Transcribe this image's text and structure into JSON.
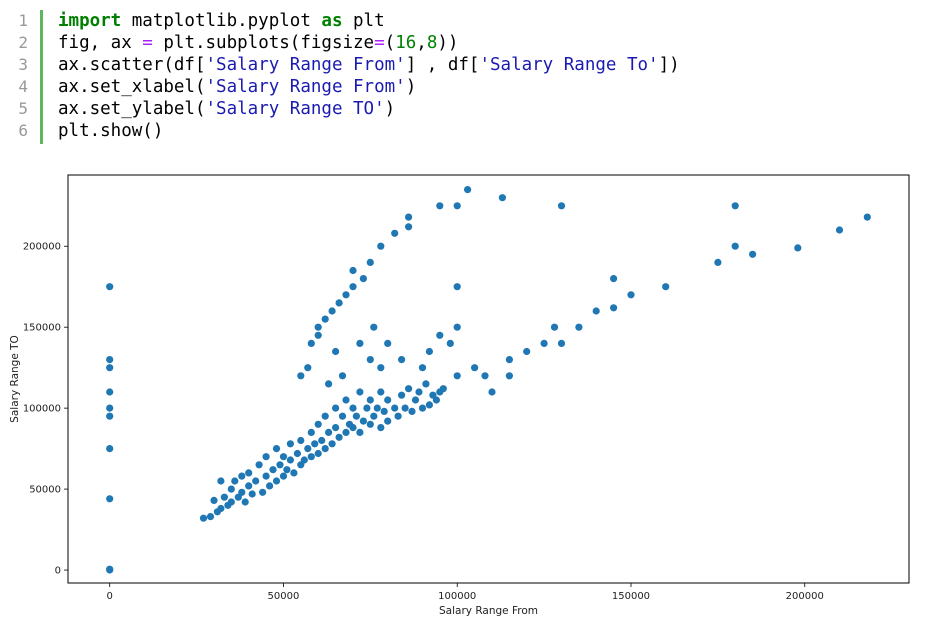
{
  "code": {
    "line_numbers": [
      "1",
      "2",
      "3",
      "4",
      "5",
      "6"
    ],
    "lines": [
      [
        {
          "t": "import",
          "c": "kw"
        },
        {
          "t": " matplotlib.pyplot ",
          "c": ""
        },
        {
          "t": "as",
          "c": "kw"
        },
        {
          "t": " plt",
          "c": ""
        }
      ],
      [
        {
          "t": "fig, ax ",
          "c": ""
        },
        {
          "t": "=",
          "c": "op"
        },
        {
          "t": " plt.subplots(figsize",
          "c": ""
        },
        {
          "t": "=",
          "c": "op"
        },
        {
          "t": "(",
          "c": ""
        },
        {
          "t": "16",
          "c": "num"
        },
        {
          "t": ",",
          "c": ""
        },
        {
          "t": "8",
          "c": "num"
        },
        {
          "t": "))",
          "c": ""
        }
      ],
      [
        {
          "t": "ax.scatter(df[",
          "c": ""
        },
        {
          "t": "'Salary Range From'",
          "c": "str"
        },
        {
          "t": "] , df[",
          "c": ""
        },
        {
          "t": "'Salary Range To'",
          "c": "str"
        },
        {
          "t": "])",
          "c": ""
        }
      ],
      [
        {
          "t": "ax.set_xlabel(",
          "c": ""
        },
        {
          "t": "'Salary Range From'",
          "c": "str"
        },
        {
          "t": ")",
          "c": ""
        }
      ],
      [
        {
          "t": "ax.set_ylabel(",
          "c": ""
        },
        {
          "t": "'Salary Range TO'",
          "c": "str"
        },
        {
          "t": ")",
          "c": ""
        }
      ],
      [
        {
          "t": "plt.show()",
          "c": ""
        }
      ]
    ]
  },
  "colors": {
    "marker": "#1f77b4",
    "keyword": "#008000",
    "string": "#1a1ab2",
    "number": "#008000",
    "operator": "#aa22ff",
    "gutter_bar": "#5cb85c"
  },
  "chart_data": {
    "type": "scatter",
    "title": "",
    "xlabel": "Salary Range From",
    "ylabel": "Salary Range TO",
    "xlim": [
      -12000,
      230000
    ],
    "ylim": [
      -8000,
      244000
    ],
    "xticks": [
      0,
      50000,
      100000,
      150000,
      200000
    ],
    "xtick_labels": [
      "0",
      "50000",
      "100000",
      "150000",
      "200000"
    ],
    "yticks": [
      0,
      50000,
      100000,
      150000,
      200000
    ],
    "ytick_labels": [
      "0",
      "50000",
      "100000",
      "150000",
      "200000"
    ],
    "grid": false,
    "series": [
      {
        "points": [
          [
            0,
            0
          ],
          [
            0,
            500
          ],
          [
            0,
            44000
          ],
          [
            0,
            75000
          ],
          [
            0,
            95000
          ],
          [
            0,
            100000
          ],
          [
            0,
            110000
          ],
          [
            0,
            125000
          ],
          [
            0,
            130000
          ],
          [
            0,
            175000
          ],
          [
            27000,
            32000
          ],
          [
            29000,
            33000
          ],
          [
            30000,
            43000
          ],
          [
            31000,
            36000
          ],
          [
            32000,
            38000
          ],
          [
            32000,
            55000
          ],
          [
            33000,
            45000
          ],
          [
            34000,
            40000
          ],
          [
            35000,
            50000
          ],
          [
            35000,
            42000
          ],
          [
            36000,
            55000
          ],
          [
            37000,
            45000
          ],
          [
            38000,
            48000
          ],
          [
            38000,
            58000
          ],
          [
            39000,
            42000
          ],
          [
            40000,
            52000
          ],
          [
            40000,
            60000
          ],
          [
            41000,
            47000
          ],
          [
            42000,
            55000
          ],
          [
            43000,
            65000
          ],
          [
            44000,
            48000
          ],
          [
            45000,
            58000
          ],
          [
            45000,
            70000
          ],
          [
            46000,
            52000
          ],
          [
            47000,
            62000
          ],
          [
            48000,
            55000
          ],
          [
            48000,
            75000
          ],
          [
            49000,
            65000
          ],
          [
            50000,
            58000
          ],
          [
            50000,
            70000
          ],
          [
            51000,
            62000
          ],
          [
            52000,
            68000
          ],
          [
            52000,
            78000
          ],
          [
            53000,
            60000
          ],
          [
            54000,
            72000
          ],
          [
            55000,
            65000
          ],
          [
            55000,
            80000
          ],
          [
            56000,
            68000
          ],
          [
            57000,
            75000
          ],
          [
            58000,
            70000
          ],
          [
            58000,
            85000
          ],
          [
            59000,
            78000
          ],
          [
            60000,
            72000
          ],
          [
            60000,
            90000
          ],
          [
            61000,
            80000
          ],
          [
            62000,
            75000
          ],
          [
            62000,
            95000
          ],
          [
            63000,
            85000
          ],
          [
            64000,
            78000
          ],
          [
            65000,
            88000
          ],
          [
            65000,
            100000
          ],
          [
            66000,
            82000
          ],
          [
            67000,
            95000
          ],
          [
            68000,
            85000
          ],
          [
            68000,
            105000
          ],
          [
            69000,
            90000
          ],
          [
            70000,
            88000
          ],
          [
            70000,
            100000
          ],
          [
            71000,
            95000
          ],
          [
            72000,
            85000
          ],
          [
            72000,
            110000
          ],
          [
            73000,
            92000
          ],
          [
            74000,
            100000
          ],
          [
            75000,
            90000
          ],
          [
            75000,
            105000
          ],
          [
            76000,
            95000
          ],
          [
            77000,
            100000
          ],
          [
            78000,
            88000
          ],
          [
            78000,
            110000
          ],
          [
            79000,
            98000
          ],
          [
            80000,
            92000
          ],
          [
            80000,
            105000
          ],
          [
            82000,
            100000
          ],
          [
            83000,
            95000
          ],
          [
            84000,
            108000
          ],
          [
            85000,
            100000
          ],
          [
            86000,
            112000
          ],
          [
            87000,
            98000
          ],
          [
            88000,
            105000
          ],
          [
            89000,
            110000
          ],
          [
            90000,
            100000
          ],
          [
            91000,
            115000
          ],
          [
            92000,
            102000
          ],
          [
            93000,
            108000
          ],
          [
            94000,
            105000
          ],
          [
            95000,
            110000
          ],
          [
            96000,
            112000
          ],
          [
            55000,
            120000
          ],
          [
            57000,
            125000
          ],
          [
            58000,
            140000
          ],
          [
            60000,
            145000
          ],
          [
            60000,
            150000
          ],
          [
            62000,
            155000
          ],
          [
            63000,
            115000
          ],
          [
            64000,
            160000
          ],
          [
            65000,
            135000
          ],
          [
            66000,
            165000
          ],
          [
            67000,
            120000
          ],
          [
            68000,
            170000
          ],
          [
            70000,
            175000
          ],
          [
            70000,
            185000
          ],
          [
            72000,
            140000
          ],
          [
            73000,
            180000
          ],
          [
            75000,
            190000
          ],
          [
            75000,
            130000
          ],
          [
            76000,
            150000
          ],
          [
            78000,
            200000
          ],
          [
            78000,
            125000
          ],
          [
            80000,
            140000
          ],
          [
            82000,
            208000
          ],
          [
            84000,
            130000
          ],
          [
            86000,
            218000
          ],
          [
            86000,
            212000
          ],
          [
            90000,
            125000
          ],
          [
            92000,
            135000
          ],
          [
            95000,
            225000
          ],
          [
            95000,
            145000
          ],
          [
            98000,
            140000
          ],
          [
            100000,
            225000
          ],
          [
            100000,
            175000
          ],
          [
            100000,
            150000
          ],
          [
            100000,
            120000
          ],
          [
            103000,
            235000
          ],
          [
            105000,
            125000
          ],
          [
            108000,
            120000
          ],
          [
            110000,
            110000
          ],
          [
            113000,
            230000
          ],
          [
            115000,
            130000
          ],
          [
            115000,
            120000
          ],
          [
            120000,
            135000
          ],
          [
            125000,
            140000
          ],
          [
            128000,
            150000
          ],
          [
            130000,
            225000
          ],
          [
            130000,
            140000
          ],
          [
            135000,
            150000
          ],
          [
            140000,
            160000
          ],
          [
            145000,
            180000
          ],
          [
            145000,
            162000
          ],
          [
            150000,
            170000
          ],
          [
            160000,
            175000
          ],
          [
            175000,
            190000
          ],
          [
            180000,
            225000
          ],
          [
            180000,
            200000
          ],
          [
            185000,
            195000
          ],
          [
            198000,
            199000
          ],
          [
            210000,
            210000
          ],
          [
            218000,
            218000
          ]
        ]
      }
    ]
  }
}
